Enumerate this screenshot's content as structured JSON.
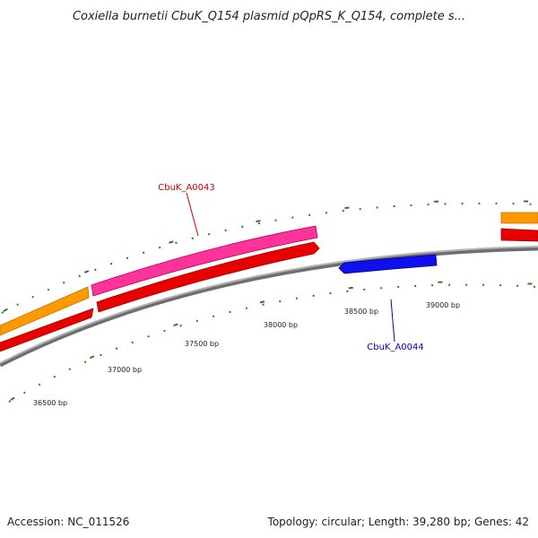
{
  "title": "Coxiella burnetii CbuK_Q154 plasmid pQpRS_K_Q154, complete s...",
  "footer": {
    "accession": "Accession: NC_011526",
    "summary": "Topology: circular; Length: 39,280 bp; Genes: 42"
  },
  "colors": {
    "backbone": "#8c8c8c",
    "tick": "#2e7d1e",
    "cds_forward": "#ff0000",
    "gene_forward": "#ff9900",
    "highlight": "#ff3399",
    "cds_reverse": "#0000ff",
    "label_forward": "#cc0000",
    "label_reverse": "#0000bb"
  },
  "ruler": {
    "labels": [
      "36500 bp",
      "37000 bp",
      "37500 bp",
      "38000 bp",
      "38500 bp",
      "39000 bp"
    ]
  },
  "features": [
    {
      "id": "CbuK_A0043",
      "label": "CbuK_A0043",
      "strand": "forward",
      "color_key": "highlight"
    },
    {
      "id": "CbuK_A0044",
      "label": "CbuK_A0044",
      "strand": "reverse",
      "color_key": "cds_reverse"
    }
  ]
}
